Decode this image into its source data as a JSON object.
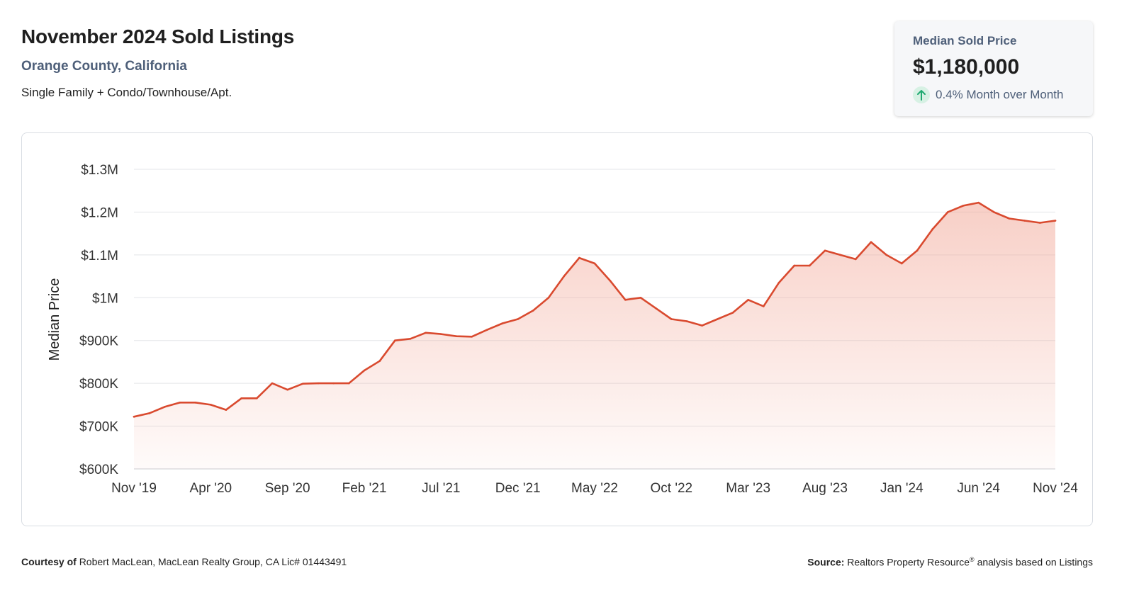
{
  "header": {
    "title": "November 2024 Sold Listings",
    "location": "Orange County, California",
    "property_types": "Single Family + Condo/Townhouse/Apt."
  },
  "stat_card": {
    "label": "Median Sold Price",
    "value": "$1,180,000",
    "change": "0.4% Month over Month",
    "change_direction_icon": "arrow-up-icon",
    "change_color": "#1fa971"
  },
  "footer": {
    "courtesy_label": "Courtesy of",
    "courtesy_text": "Robert MacLean, MacLean Realty Group, CA Lic# 01443491",
    "source_label": "Source:",
    "source_text": "Realtors Property Resource",
    "source_mark": "®",
    "source_suffix": "analysis based on Listings"
  },
  "chart_data": {
    "type": "area",
    "title": "",
    "xlabel": "",
    "ylabel": "Median Price",
    "line_color": "#d94a2f",
    "fill_color": "#f2a898",
    "grid": true,
    "ylim": [
      600000,
      1300000
    ],
    "y_ticks": [
      600000,
      700000,
      800000,
      900000,
      1000000,
      1100000,
      1200000,
      1300000
    ],
    "y_tick_labels": [
      "$600K",
      "$700K",
      "$800K",
      "$900K",
      "$1M",
      "$1.1M",
      "$1.2M",
      "$1.3M"
    ],
    "x_tick_labels": [
      "Nov '19",
      "Apr '20",
      "Sep '20",
      "Feb '21",
      "Jul '21",
      "Dec '21",
      "May '22",
      "Oct '22",
      "Mar '23",
      "Aug '23",
      "Jan '24",
      "Jun '24",
      "Nov '24"
    ],
    "series": [
      {
        "values": [
          722000,
          730000,
          745000,
          755000,
          755000,
          750000,
          738000,
          765000,
          765000,
          800000,
          785000,
          799000,
          800000,
          800000,
          800000,
          830000,
          852000,
          900000,
          904000,
          918000,
          915000,
          910000,
          909000,
          925000,
          940000,
          950000,
          970000,
          1000000,
          1050000,
          1093000,
          1080000,
          1040000,
          995000,
          1000000,
          975000,
          950000,
          945000,
          935000,
          950000,
          965000,
          995000,
          980000,
          1035000,
          1075000,
          1075000,
          1110000,
          1100000,
          1090000,
          1130000,
          1100000,
          1080000,
          1110000,
          1160000,
          1200000,
          1215000,
          1222000,
          1200000,
          1185000,
          1180000,
          1175000,
          1180000
        ]
      }
    ]
  }
}
